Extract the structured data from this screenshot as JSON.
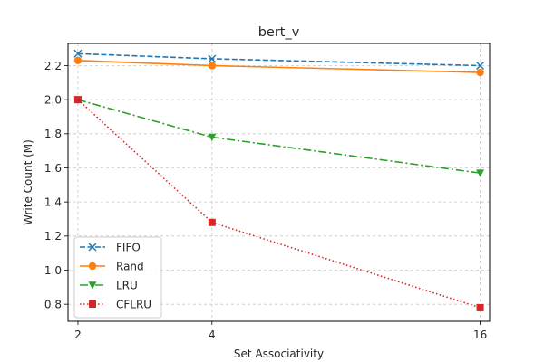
{
  "chart_data": {
    "type": "line",
    "title": "bert_v",
    "xlabel": "Set Associativity",
    "ylabel": "Write Count (M)",
    "categories": [
      "2",
      "4",
      "16"
    ],
    "xlim": [
      1.9,
      16.8
    ],
    "ylim": [
      0.7,
      2.33
    ],
    "yticks": [
      0.8,
      1.0,
      1.2,
      1.4,
      1.6,
      1.8,
      2.0,
      2.2
    ],
    "grid": true,
    "legend_position": "lower-left",
    "series": [
      {
        "name": "FIFO",
        "values": [
          2.27,
          2.24,
          2.2
        ],
        "color": "#1f77b4",
        "dash": "dashed",
        "marker": "x"
      },
      {
        "name": "Rand",
        "values": [
          2.23,
          2.2,
          2.16
        ],
        "color": "#ff7f0e",
        "dash": "solid",
        "marker": "circle"
      },
      {
        "name": "LRU",
        "values": [
          2.0,
          1.78,
          1.57
        ],
        "color": "#2ca02c",
        "dash": "dashdot",
        "marker": "triangle-down"
      },
      {
        "name": "CFLRU",
        "values": [
          2.0,
          1.28,
          0.78
        ],
        "color": "#d62728",
        "dash": "dotted",
        "marker": "square"
      }
    ]
  }
}
